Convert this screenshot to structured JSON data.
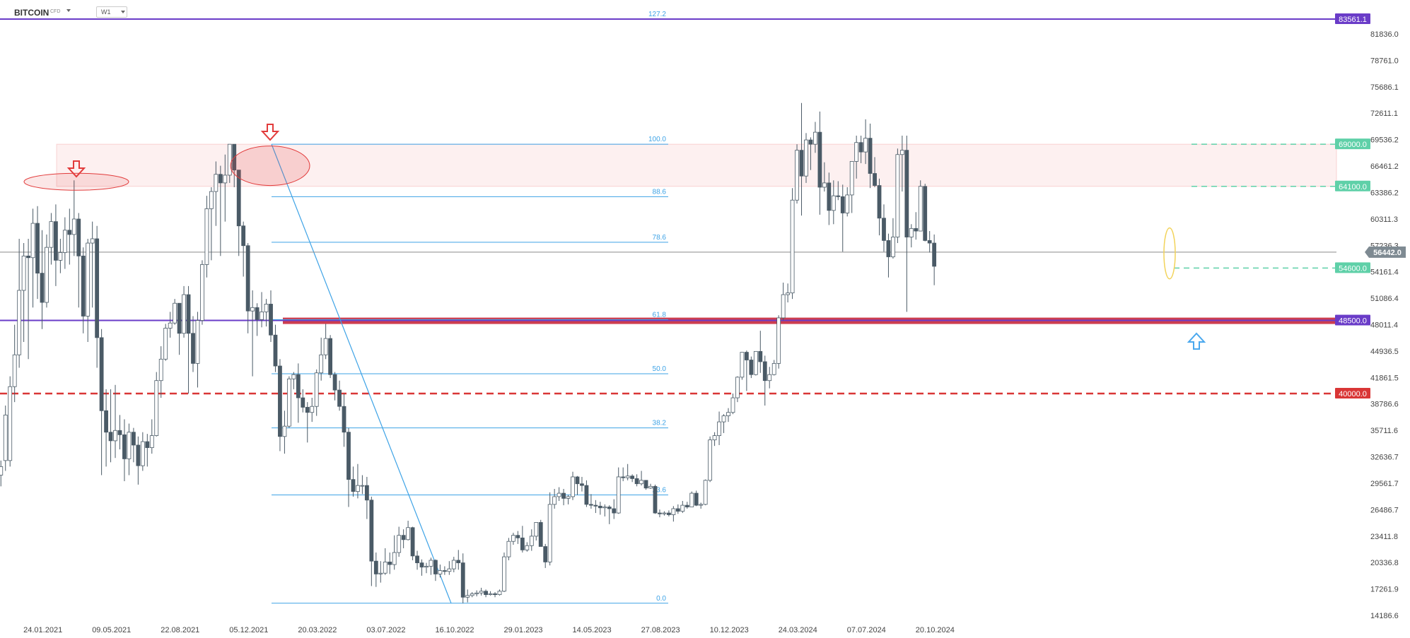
{
  "header": {
    "symbol": "BITCOIN",
    "symbol_type": "CFD",
    "timeframe": "W1"
  },
  "colors": {
    "bull_candle": "#ffffff",
    "bear_candle": "#4a5a66",
    "fib_line": "#3ea3e6",
    "purple_level": "#6a3cc8",
    "red_level": "#d93636",
    "resistance_zone": "#f7b9b9",
    "green_level": "#5fd0a8",
    "arrow_down": "#e23b3b",
    "arrow_up": "#4aa8ee"
  },
  "chart_data": {
    "type": "candlestick",
    "ylim": [
      14186.6,
      86000
    ],
    "y_ticks": [
      "81836.0",
      "78761.0",
      "75686.1",
      "72611.1",
      "69536.2",
      "66461.2",
      "63386.2",
      "60311.3",
      "57236.3",
      "54161.4",
      "51086.4",
      "48011.4",
      "44936.5",
      "41861.5",
      "38786.6",
      "35711.6",
      "32636.7",
      "29561.7",
      "26486.7",
      "23411.8",
      "20336.8",
      "17261.9",
      "14186.6"
    ],
    "x_ticks": [
      {
        "label": "24.01.2021",
        "date": "2021-01-24"
      },
      {
        "label": "09.05.2021",
        "date": "2021-05-09"
      },
      {
        "label": "22.08.2021",
        "date": "2021-08-22"
      },
      {
        "label": "05.12.2021",
        "date": "2021-12-05"
      },
      {
        "label": "20.03.2022",
        "date": "2022-03-20"
      },
      {
        "label": "03.07.2022",
        "date": "2022-07-03"
      },
      {
        "label": "16.10.2022",
        "date": "2022-10-16"
      },
      {
        "label": "29.01.2023",
        "date": "2023-01-29"
      },
      {
        "label": "14.05.2023",
        "date": "2023-05-14"
      },
      {
        "label": "27.08.2023",
        "date": "2023-08-27"
      },
      {
        "label": "10.12.2023",
        "date": "2023-12-10"
      },
      {
        "label": "24.03.2024",
        "date": "2024-03-24"
      },
      {
        "label": "07.07.2024",
        "date": "2024-07-07"
      },
      {
        "label": "20.10.2024",
        "date": "2024-10-20"
      }
    ],
    "start_date": "2020-12-27",
    "candles": [
      [
        30500,
        31500,
        29200,
        32200
      ],
      [
        32200,
        37500,
        31000,
        38600
      ],
      [
        32200,
        40800,
        31500,
        42000
      ],
      [
        40800,
        44500,
        39000,
        48000
      ],
      [
        44500,
        52000,
        43000,
        58000
      ],
      [
        52000,
        56000,
        46000,
        57500
      ],
      [
        56000,
        55800,
        44000,
        58000
      ],
      [
        55800,
        59800,
        50000,
        61500
      ],
      [
        59800,
        54000,
        51000,
        61800
      ],
      [
        54000,
        50600,
        47500,
        59000
      ],
      [
        50600,
        57000,
        50000,
        58500
      ],
      [
        57000,
        60000,
        55000,
        61000
      ],
      [
        60000,
        55500,
        52500,
        62000
      ],
      [
        55500,
        56400,
        54000,
        58000
      ],
      [
        56400,
        59000,
        54500,
        60500
      ],
      [
        59000,
        58500,
        55000,
        61500
      ],
      [
        58500,
        60300,
        56000,
        64800
      ],
      [
        60300,
        56000,
        50000,
        61000
      ],
      [
        56000,
        49000,
        47000,
        57000
      ],
      [
        49000,
        57500,
        46000,
        58000
      ],
      [
        57500,
        58000,
        50000,
        60000
      ],
      [
        58000,
        46500,
        43000,
        59500
      ],
      [
        46500,
        38000,
        30500,
        47500
      ],
      [
        38000,
        35500,
        31500,
        40500
      ],
      [
        35500,
        34500,
        32000,
        40500
      ],
      [
        34500,
        35700,
        32500,
        41000
      ],
      [
        35700,
        35200,
        33500,
        37500
      ],
      [
        35200,
        32400,
        29800,
        37000
      ],
      [
        32400,
        35500,
        30500,
        36500
      ],
      [
        35500,
        34000,
        32000,
        36000
      ],
      [
        34000,
        31600,
        29400,
        35000
      ],
      [
        31600,
        34400,
        31000,
        35500
      ],
      [
        34400,
        33700,
        31500,
        35300
      ],
      [
        33700,
        35100,
        33000,
        37000
      ],
      [
        35100,
        41500,
        35000,
        42500
      ],
      [
        41500,
        44000,
        39500,
        45500
      ],
      [
        44000,
        47600,
        43800,
        48100
      ],
      [
        47600,
        48200,
        46500,
        49500
      ],
      [
        48200,
        50500,
        48000,
        51000
      ],
      [
        50500,
        47000,
        44500,
        50500
      ],
      [
        47000,
        51500,
        46500,
        52500
      ],
      [
        51500,
        47000,
        40000,
        52500
      ],
      [
        47000,
        43500,
        42500,
        49000
      ],
      [
        43500,
        48500,
        40700,
        49500
      ],
      [
        48500,
        55000,
        48000,
        55500
      ],
      [
        55000,
        61500,
        53500,
        63000
      ],
      [
        61500,
        63500,
        55500,
        64000
      ],
      [
        63500,
        65500,
        59500,
        67000
      ],
      [
        65500,
        64500,
        56000,
        66500
      ],
      [
        64500,
        65400,
        60000,
        67800
      ],
      [
        65400,
        69000,
        64500,
        69000
      ],
      [
        69000,
        66000,
        64000,
        69000
      ],
      [
        66000,
        59500,
        56000,
        66000
      ],
      [
        59500,
        57200,
        53600,
        60000
      ],
      [
        57200,
        49600,
        47000,
        57500
      ],
      [
        49600,
        50000,
        42000,
        52000
      ],
      [
        50000,
        48600,
        46700,
        50500
      ],
      [
        48600,
        49500,
        47700,
        51800
      ],
      [
        49500,
        50400,
        47800,
        51000
      ],
      [
        50400,
        46800,
        46000,
        52000
      ],
      [
        46800,
        43200,
        42500,
        48000
      ],
      [
        43200,
        35000,
        33300,
        44000
      ],
      [
        35000,
        36200,
        33000,
        38000
      ],
      [
        36200,
        41700,
        36000,
        42000
      ],
      [
        41700,
        42200,
        40500,
        42500
      ],
      [
        42200,
        39500,
        36600,
        43500
      ],
      [
        39500,
        38400,
        37800,
        40500
      ],
      [
        38400,
        37800,
        34300,
        39000
      ],
      [
        37800,
        38500,
        36700,
        39500
      ],
      [
        38500,
        42400,
        37400,
        42800
      ],
      [
        42400,
        44500,
        41500,
        46500
      ],
      [
        44500,
        46400,
        44000,
        48100
      ],
      [
        46400,
        42200,
        41800,
        46800
      ],
      [
        42200,
        40400,
        39200,
        42500
      ],
      [
        40400,
        38500,
        38000,
        41500
      ],
      [
        38500,
        35500,
        33800,
        40000
      ],
      [
        35500,
        30000,
        26800,
        36000
      ],
      [
        30000,
        28600,
        28000,
        31500
      ],
      [
        28600,
        29300,
        27800,
        31800
      ],
      [
        29300,
        29300,
        28300,
        30500
      ],
      [
        29300,
        27600,
        25400,
        30300
      ],
      [
        27600,
        20500,
        17600,
        28000
      ],
      [
        20500,
        19000,
        17500,
        21500
      ],
      [
        19000,
        19100,
        18000,
        20500
      ],
      [
        19100,
        20400,
        18900,
        22000
      ],
      [
        20400,
        20100,
        19000,
        21500
      ],
      [
        20100,
        21500,
        19500,
        23500
      ],
      [
        21500,
        23500,
        21000,
        24500
      ],
      [
        23500,
        23000,
        22000,
        24200
      ],
      [
        23000,
        24400,
        22900,
        25200
      ],
      [
        24400,
        21100,
        20600,
        24500
      ],
      [
        21100,
        20300,
        19500,
        21700
      ],
      [
        20300,
        19800,
        18800,
        20700
      ],
      [
        19800,
        19900,
        19100,
        20300
      ],
      [
        19900,
        20600,
        18900,
        20900
      ],
      [
        20600,
        19000,
        18200,
        20700
      ],
      [
        19000,
        19400,
        18600,
        20100
      ],
      [
        19400,
        19300,
        18900,
        19900
      ],
      [
        19300,
        19600,
        18900,
        20500
      ],
      [
        19600,
        20600,
        19200,
        21000
      ],
      [
        20600,
        20300,
        19500,
        21800
      ],
      [
        20300,
        16300,
        15600,
        21400
      ],
      [
        16300,
        16500,
        15700,
        17200
      ],
      [
        16500,
        16700,
        16300,
        16900
      ],
      [
        16700,
        16800,
        16400,
        17100
      ],
      [
        16800,
        17000,
        16500,
        17400
      ],
      [
        17000,
        16600,
        16300,
        17200
      ],
      [
        16600,
        16700,
        16500,
        17000
      ],
      [
        16700,
        16600,
        16300,
        16900
      ],
      [
        16600,
        17000,
        16500,
        17200
      ],
      [
        17000,
        21000,
        16900,
        21500
      ],
      [
        21000,
        22800,
        20600,
        23200
      ],
      [
        22800,
        23500,
        22400,
        23800
      ],
      [
        23500,
        23200,
        22500,
        24000
      ],
      [
        23200,
        21800,
        21500,
        24600
      ],
      [
        21800,
        22300,
        21600,
        22700
      ],
      [
        22300,
        23400,
        21700,
        24200
      ],
      [
        23400,
        25000,
        22900,
        25000
      ],
      [
        25000,
        22200,
        22200,
        25300
      ],
      [
        22200,
        20400,
        19700,
        22500
      ],
      [
        20400,
        27100,
        20000,
        28500
      ],
      [
        27100,
        28000,
        26600,
        28900
      ],
      [
        28000,
        28400,
        27500,
        29100
      ],
      [
        28400,
        27800,
        27000,
        28900
      ],
      [
        27800,
        28000,
        27100,
        28200
      ],
      [
        28000,
        30300,
        27600,
        30900
      ],
      [
        30300,
        29500,
        28200,
        30400
      ],
      [
        29500,
        29300,
        28600,
        30300
      ],
      [
        29300,
        27100,
        26800,
        29900
      ],
      [
        27100,
        27000,
        26600,
        28300
      ],
      [
        27000,
        26900,
        26100,
        27600
      ],
      [
        26900,
        26700,
        25900,
        27400
      ],
      [
        26700,
        26800,
        25700,
        27100
      ],
      [
        26800,
        26600,
        24800,
        27000
      ],
      [
        26600,
        26100,
        25400,
        27700
      ],
      [
        26100,
        30300,
        26000,
        31400
      ],
      [
        30300,
        30200,
        29800,
        31400
      ],
      [
        30200,
        30400,
        29900,
        31800
      ],
      [
        30400,
        30100,
        29700,
        30600
      ],
      [
        30100,
        29500,
        29200,
        30600
      ],
      [
        29500,
        29900,
        29300,
        31000
      ],
      [
        29900,
        29000,
        28800,
        29600
      ],
      [
        29000,
        29200,
        28900,
        29500
      ],
      [
        29200,
        26100,
        26000,
        29400
      ],
      [
        26100,
        26000,
        25600,
        26500
      ],
      [
        26000,
        26100,
        25800,
        26300
      ],
      [
        26100,
        25900,
        25700,
        26400
      ],
      [
        25900,
        26600,
        25100,
        26900
      ],
      [
        26600,
        26300,
        26000,
        27100
      ],
      [
        26300,
        27000,
        26100,
        27500
      ],
      [
        27000,
        26800,
        26600,
        27400
      ],
      [
        26800,
        28400,
        26800,
        28600
      ],
      [
        28400,
        27000,
        26900,
        28700
      ],
      [
        27000,
        27100,
        26600,
        27300
      ],
      [
        27100,
        29900,
        27000,
        30000
      ],
      [
        29900,
        34600,
        29700,
        35000
      ],
      [
        34600,
        35100,
        33900,
        35500
      ],
      [
        35100,
        36700,
        34000,
        37900
      ],
      [
        36700,
        37400,
        35400,
        37600
      ],
      [
        37400,
        37800,
        36700,
        38300
      ],
      [
        37800,
        39500,
        37600,
        40000
      ],
      [
        39500,
        41900,
        39000,
        42000
      ],
      [
        41900,
        44800,
        41600,
        44800
      ],
      [
        44800,
        43900,
        40300,
        45000
      ],
      [
        43900,
        42200,
        41800,
        44300
      ],
      [
        42200,
        44900,
        42100,
        44900
      ],
      [
        44900,
        43700,
        42400,
        47300
      ],
      [
        43700,
        41500,
        38600,
        44400
      ],
      [
        41500,
        42200,
        40600,
        43100
      ],
      [
        42200,
        43500,
        42100,
        43900
      ],
      [
        43500,
        48800,
        42900,
        49100
      ],
      [
        48800,
        51500,
        48500,
        52900
      ],
      [
        51500,
        51700,
        50600,
        52800
      ],
      [
        51700,
        62500,
        51000,
        63900
      ],
      [
        62500,
        68300,
        62100,
        69000
      ],
      [
        68300,
        65300,
        60700,
        73800
      ],
      [
        65300,
        69500,
        64500,
        70300
      ],
      [
        69500,
        69000,
        66000,
        69800
      ],
      [
        69000,
        70400,
        68000,
        71600
      ],
      [
        70400,
        64000,
        60800,
        72800
      ],
      [
        64000,
        64500,
        63500,
        66900
      ],
      [
        64500,
        61300,
        59600,
        65700
      ],
      [
        61300,
        63000,
        59700,
        64800
      ],
      [
        63000,
        62900,
        62500,
        64700
      ],
      [
        62900,
        61000,
        56500,
        64300
      ],
      [
        61000,
        63100,
        60600,
        64000
      ],
      [
        63100,
        67000,
        61000,
        67000
      ],
      [
        67000,
        69200,
        65000,
        70000
      ],
      [
        69200,
        68100,
        66800,
        70000
      ],
      [
        68100,
        69700,
        66700,
        71900
      ],
      [
        69700,
        65600,
        63900,
        71400
      ],
      [
        65600,
        64200,
        64000,
        67500
      ],
      [
        64200,
        60400,
        58400,
        65000
      ],
      [
        60400,
        57800,
        56500,
        62000
      ],
      [
        57800,
        55900,
        53500,
        58600
      ],
      [
        55900,
        58200,
        55700,
        60400
      ],
      [
        58200,
        67800,
        57500,
        68500
      ],
      [
        67800,
        68300,
        63500,
        70000
      ],
      [
        68300,
        58200,
        49500,
        70000
      ],
      [
        58200,
        59200,
        57000,
        59700
      ],
      [
        59200,
        58900,
        57900,
        61100
      ],
      [
        58900,
        64100,
        58900,
        64800
      ],
      [
        64100,
        57800,
        57700,
        64400
      ],
      [
        57800,
        57500,
        56400,
        58900
      ],
      [
        57500,
        54800,
        52600,
        58500
      ]
    ],
    "fibonacci": {
      "high": 69000,
      "low": 15600,
      "levels": [
        {
          "label": "127.2",
          "value": 83561.1
        },
        {
          "label": "100.0",
          "value": 69000
        },
        {
          "label": "88.6",
          "value": 62900
        },
        {
          "label": "78.6",
          "value": 57600
        },
        {
          "label": "61.8",
          "value": 48600
        },
        {
          "label": "50.0",
          "value": 42300
        },
        {
          "label": "38.2",
          "value": 36000
        },
        {
          "label": "23.6",
          "value": 28200
        },
        {
          "label": "0.0",
          "value": 15600
        }
      ]
    },
    "levels": [
      {
        "label": "83561.1",
        "value": 83561.1,
        "kind": "purple"
      },
      {
        "label": "69000.0",
        "value": 69000,
        "kind": "green"
      },
      {
        "label": "64100.0",
        "value": 64100,
        "kind": "green"
      },
      {
        "label": "54600.0",
        "value": 54600,
        "kind": "green"
      },
      {
        "label": "48500.0",
        "value": 48500,
        "kind": "purple"
      },
      {
        "label": "40000.0",
        "value": 40000,
        "kind": "red"
      }
    ],
    "current_price": {
      "label": "56442.0",
      "value": 56442
    },
    "resistance_zone": [
      64100,
      69000
    ]
  }
}
